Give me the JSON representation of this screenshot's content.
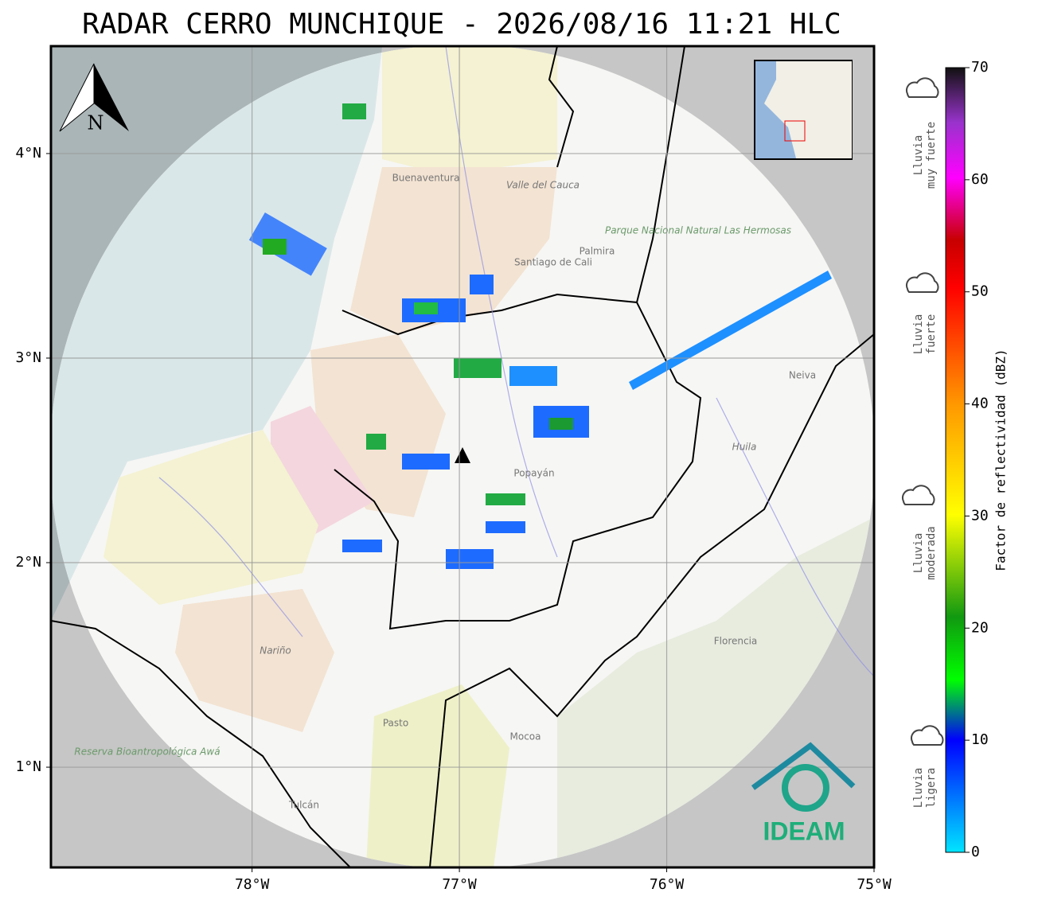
{
  "title": "RADAR CERRO MUNCHIQUE - 2026/08/16 11:21 HLC",
  "map": {
    "xlim": [
      -78.97,
      -75.0
    ],
    "ylim": [
      0.51,
      4.525
    ],
    "xticks": [
      {
        "value": -78,
        "label": "78°W"
      },
      {
        "value": -77,
        "label": "77°W"
      },
      {
        "value": -76,
        "label": "76°W"
      },
      {
        "value": -75,
        "label": "75°W"
      }
    ],
    "yticks": [
      {
        "value": 1,
        "label": "1°N"
      },
      {
        "value": 2,
        "label": "2°N"
      },
      {
        "value": 3,
        "label": "3°N"
      },
      {
        "value": 4,
        "label": "4°N"
      }
    ],
    "grid": true,
    "north": "N",
    "places": [
      "Buenaventura",
      "Valle del Cauca",
      "Santiago de Cali",
      "Palmira",
      "Parque Nacional Natural Las Hermosas",
      "Popayán",
      "Huila",
      "Neiva",
      "Florencia",
      "Nariño",
      "Pasto",
      "Mocoa",
      "Tulcán",
      "Reserva Bioantropológica Awá"
    ],
    "logo": "IDEAM"
  },
  "colorbar": {
    "label": "Factor de reflectividad (dBZ)",
    "lim": [
      0,
      70
    ],
    "ticks": [
      0,
      10,
      20,
      30,
      40,
      50,
      60,
      70
    ]
  },
  "legend": [
    [
      "Lluvia",
      "muy fuerte"
    ],
    [
      "Lluvia",
      "fuerte"
    ],
    [
      "Lluvia",
      "moderada"
    ],
    [
      "Lluvia",
      "ligera"
    ]
  ]
}
